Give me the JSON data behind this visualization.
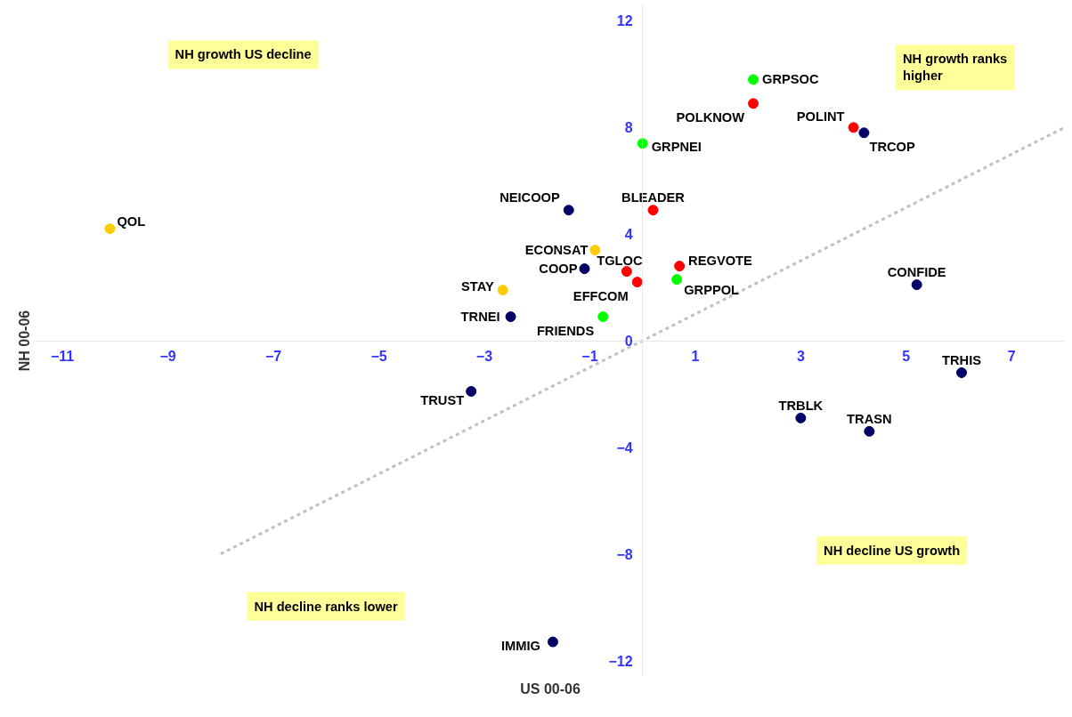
{
  "chart_data": {
    "type": "scatter",
    "xlabel": "US 00-06",
    "ylabel": "NH 00-06",
    "xlim": [
      -11.5,
      8
    ],
    "ylim": [
      -12.6,
      12.6
    ],
    "xticks": [
      -11,
      -9,
      -7,
      -5,
      -3,
      -1,
      1,
      3,
      5,
      7
    ],
    "yticks": [
      -12,
      -8,
      -4,
      0,
      4,
      8,
      12
    ],
    "grid": false,
    "marker": "circle",
    "annotations": [
      "NH growth US decline",
      "NH growth ranks higher",
      "NH decline US growth",
      "NH decline ranks lower"
    ],
    "series": [
      {
        "type": "line",
        "marker": "none",
        "line_style": "dashed",
        "color": "#c0c0c0",
        "x": [
          -8,
          8
        ],
        "values": [
          -8,
          8
        ]
      },
      {
        "name": "QOL",
        "color": "#ffcc00",
        "x": [
          -10.1
        ],
        "values": [
          4.2
        ]
      },
      {
        "name": "NEICOOP",
        "color": "#000066",
        "x": [
          -1.4
        ],
        "values": [
          4.9
        ]
      },
      {
        "name": "BLEADER",
        "color": "#ff0000",
        "x": [
          0.2
        ],
        "values": [
          4.9
        ]
      },
      {
        "name": "GRPSOC",
        "color": "#00ff00",
        "x": [
          2.1
        ],
        "values": [
          9.8
        ]
      },
      {
        "name": "POLKNOW",
        "color": "#ff0000",
        "x": [
          2.1
        ],
        "values": [
          8.9
        ]
      },
      {
        "name": "POLINT",
        "color": "#ff0000",
        "x": [
          4.0
        ],
        "values": [
          8.0
        ]
      },
      {
        "name": "TRCOP",
        "color": "#000066",
        "x": [
          4.2
        ],
        "values": [
          7.8
        ]
      },
      {
        "name": "GRPNEI",
        "color": "#00ff00",
        "x": [
          0.0
        ],
        "values": [
          7.4
        ]
      },
      {
        "name": "ECONSAT",
        "color": "#ffcc00",
        "x": [
          -0.9
        ],
        "values": [
          3.4
        ]
      },
      {
        "name": "COOP",
        "color": "#000066",
        "x": [
          -1.1
        ],
        "values": [
          2.7
        ]
      },
      {
        "name": "TGLOC",
        "color": "#ff0000",
        "x": [
          -0.3
        ],
        "values": [
          2.6
        ]
      },
      {
        "name": "EFFCOM",
        "color": "#ff0000",
        "x": [
          -0.1
        ],
        "values": [
          2.2
        ]
      },
      {
        "name": "REGVOTE",
        "color": "#ff0000",
        "x": [
          0.7
        ],
        "values": [
          2.8
        ]
      },
      {
        "name": "GRPPOL",
        "color": "#00ff00",
        "x": [
          0.65
        ],
        "values": [
          2.3
        ]
      },
      {
        "name": "FRIENDS",
        "color": "#00ff00",
        "x": [
          -0.75
        ],
        "values": [
          0.9
        ]
      },
      {
        "name": "STAY",
        "color": "#ffcc00",
        "x": [
          -2.65
        ],
        "values": [
          1.9
        ]
      },
      {
        "name": "TRNEI",
        "color": "#000066",
        "x": [
          -2.5
        ],
        "values": [
          0.9
        ]
      },
      {
        "name": "TRUST",
        "color": "#000066",
        "x": [
          -3.25
        ],
        "values": [
          -1.9
        ]
      },
      {
        "name": "CONFIDE",
        "color": "#000066",
        "x": [
          5.2
        ],
        "values": [
          2.1
        ]
      },
      {
        "name": "TRHIS",
        "color": "#000066",
        "x": [
          6.05
        ],
        "values": [
          -1.2
        ]
      },
      {
        "name": "TRBLK",
        "color": "#000066",
        "x": [
          3.0
        ],
        "values": [
          -2.9
        ]
      },
      {
        "name": "TRASN",
        "color": "#000066",
        "x": [
          4.3
        ],
        "values": [
          -3.4
        ]
      },
      {
        "name": "IMMIG",
        "color": "#000066",
        "x": [
          -1.7
        ],
        "values": [
          -11.3
        ]
      }
    ]
  }
}
